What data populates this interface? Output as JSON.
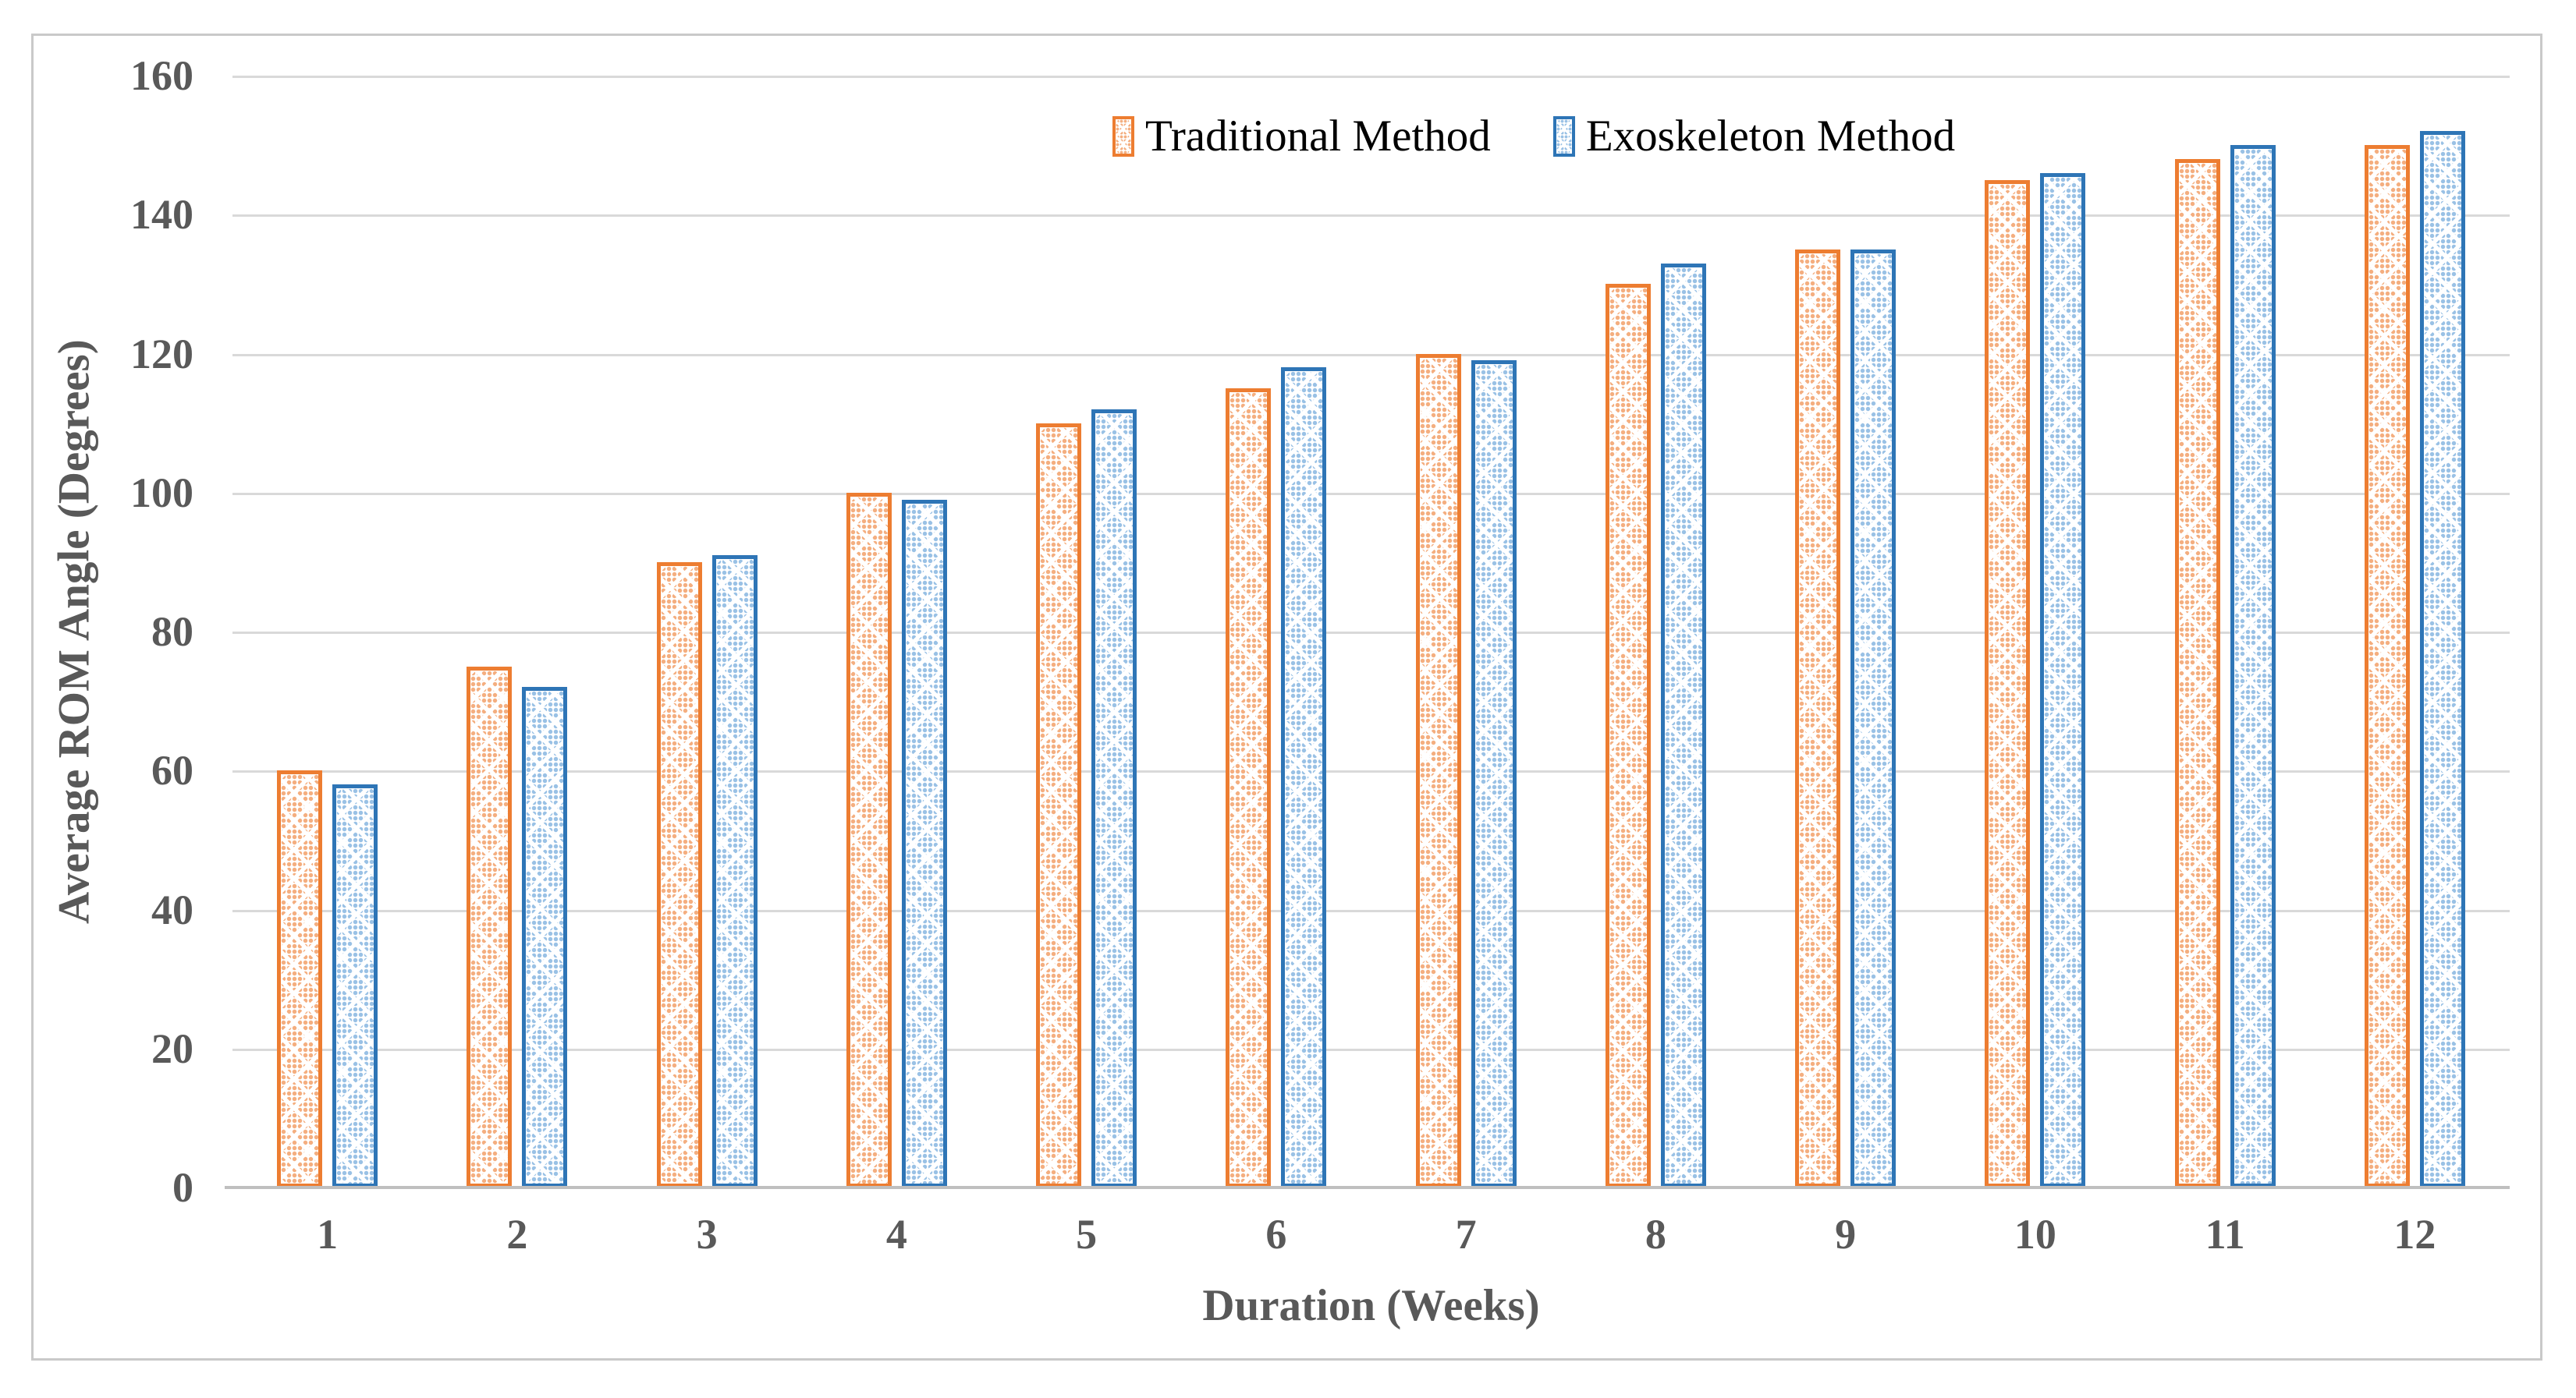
{
  "figure": {
    "background": "#FFFFFF",
    "border_color": "#C9C9C9"
  },
  "chart_data": {
    "type": "bar",
    "title": "",
    "categories": [
      "1",
      "2",
      "3",
      "4",
      "5",
      "6",
      "7",
      "8",
      "9",
      "10",
      "11",
      "12"
    ],
    "series": [
      {
        "name": "Traditional Method",
        "values": [
          60,
          75,
          90,
          100,
          110,
          115,
          120,
          130,
          135,
          145,
          148,
          150
        ],
        "edge_color": "#ED7D31",
        "pattern_dot_color": "rgba(237,125,49,0.62)"
      },
      {
        "name": "Exoskeleton Method",
        "values": [
          58,
          72,
          91,
          99,
          112,
          118,
          119,
          133,
          135,
          146,
          150,
          152
        ],
        "edge_color": "#2E75B6",
        "pattern_dot_color": "rgba(91,155,213,0.62)"
      }
    ],
    "xlabel": "Duration (Weeks)",
    "ylabel": "Average ROM Angle (Degrees)",
    "ylim": [
      0,
      160
    ],
    "ytick_step": 20,
    "yticks": [
      "0",
      "20",
      "40",
      "60",
      "80",
      "100",
      "120",
      "140",
      "160"
    ],
    "grid": true,
    "gridline_color": "#D9D9D9",
    "axis_line_color": "#BFBFBF",
    "tick_label_color": "#595959",
    "legend_position": "top-center",
    "pattern_style": "dotted-diamond"
  }
}
